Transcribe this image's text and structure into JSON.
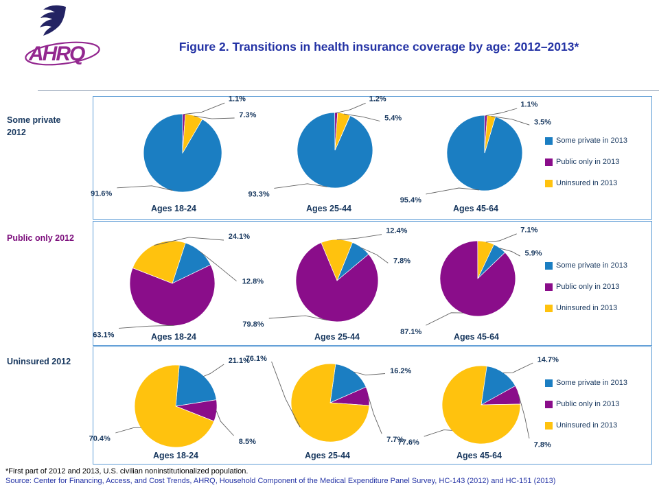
{
  "title": "Figure 2. Transitions in health insurance coverage by age: 2012–2013*",
  "logo": {
    "text": "AHRQ"
  },
  "footnotes": {
    "line1": "*First part of 2012 and 2013, U.S. civilian noninstitutionalized population.",
    "line2": "Source: Center for Financing, Access, and Cost Trends, AHRQ, Household Component of the Medical Expenditure Panel Survey, HC-143 (2012) and HC-151 (2013)"
  },
  "colors": {
    "some_private": "#1B7EC2",
    "public_only": "#8A0D8A",
    "uninsured": "#FFC20E",
    "title": "#2433A5",
    "label": "#17375E",
    "row_label_public": "#7B0C7B",
    "box_border": "#5B9BD5",
    "logo_purple": "#93278F",
    "logo_navy": "#232363"
  },
  "chart_data": {
    "type": "pie",
    "legend": [
      "Some private in 2013",
      "Public only in 2013",
      "Uninsured in 2013"
    ],
    "slice_keys": [
      "some_private",
      "public_only",
      "uninsured"
    ],
    "rows": [
      {
        "row_label": "Some private 2012",
        "pies": [
          {
            "age_label": "Ages 18-24",
            "values": {
              "some_private": 91.6,
              "public_only": 1.1,
              "uninsured": 7.3
            }
          },
          {
            "age_label": "Ages 25-44",
            "values": {
              "some_private": 93.3,
              "public_only": 1.2,
              "uninsured": 5.4
            }
          },
          {
            "age_label": "Ages 45-64",
            "values": {
              "some_private": 95.4,
              "public_only": 1.1,
              "uninsured": 3.5
            }
          }
        ]
      },
      {
        "row_label": "Public only 2012",
        "pies": [
          {
            "age_label": "Ages 18-24",
            "values": {
              "some_private": 12.8,
              "public_only": 63.1,
              "uninsured": 24.1
            }
          },
          {
            "age_label": "Ages 25-44",
            "values": {
              "some_private": 7.8,
              "public_only": 79.8,
              "uninsured": 12.4
            }
          },
          {
            "age_label": "Ages 45-64",
            "values": {
              "some_private": 5.9,
              "public_only": 87.1,
              "uninsured": 7.1
            }
          }
        ]
      },
      {
        "row_label": "Uninsured 2012",
        "pies": [
          {
            "age_label": "Ages 18-24",
            "values": {
              "some_private": 21.1,
              "public_only": 8.5,
              "uninsured": 70.4
            }
          },
          {
            "age_label": "Ages 25-44",
            "values": {
              "some_private": 16.2,
              "public_only": 7.7,
              "uninsured": 76.1
            }
          },
          {
            "age_label": "Ages 45-64",
            "values": {
              "some_private": 14.7,
              "public_only": 7.8,
              "uninsured": 77.6
            }
          }
        ]
      }
    ]
  }
}
